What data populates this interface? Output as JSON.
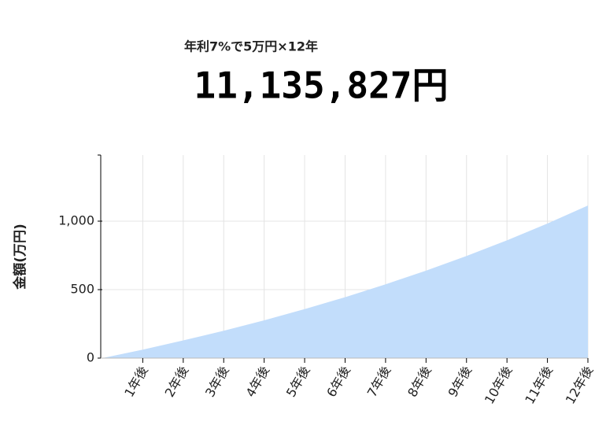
{
  "chart_data": {
    "type": "area",
    "title": "年利7%で5万円×12年",
    "subtitle": "11,135,827円",
    "y_label": "金額(万円)",
    "x": [
      0,
      1,
      2,
      3,
      4,
      5,
      6,
      7,
      8,
      9,
      10,
      11,
      12
    ],
    "values": [
      0,
      62,
      129,
      200,
      276,
      358,
      445,
      539,
      639,
      746,
      860,
      983,
      1114
    ],
    "color": "#c2ddfb",
    "xlim": [
      0,
      12
    ],
    "xticks": [
      {
        "value": 1,
        "label": "1年後"
      },
      {
        "value": 2,
        "label": "2年後"
      },
      {
        "value": 3,
        "label": "3年後"
      },
      {
        "value": 4,
        "label": "4年後"
      },
      {
        "value": 5,
        "label": "5年後"
      },
      {
        "value": 6,
        "label": "6年後"
      },
      {
        "value": 7,
        "label": "7年後"
      },
      {
        "value": 8,
        "label": "8年後"
      },
      {
        "value": 9,
        "label": "9年後"
      },
      {
        "value": 10,
        "label": "10年後"
      },
      {
        "value": 11,
        "label": "11年後"
      },
      {
        "value": 12,
        "label": "12年後"
      }
    ],
    "ylim": [
      0,
      1500
    ],
    "yticks": [
      0,
      500,
      {
        "value": 1000,
        "label": "1,000"
      }
    ],
    "grid": true
  }
}
